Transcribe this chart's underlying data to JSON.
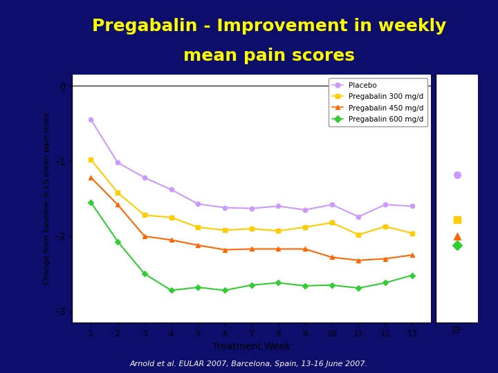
{
  "title_line1": "Pregabalin - Improvement in weekly",
  "title_line2": "mean pain scores",
  "title_color": "#FFFF00",
  "bg_color": "#0D0D6B",
  "plot_bg": "#FFFFFF",
  "ylabel": "Change from baseline in LS mean pain score",
  "xlabel": "Treatment Week",
  "footnote": "Arnold et al. EULAR 2007, Barcelona, Spain, 13-16 June 2007.",
  "weeks": [
    1,
    2,
    3,
    4,
    5,
    6,
    7,
    8,
    9,
    10,
    11,
    12,
    13
  ],
  "placebo": {
    "label": "Placebo",
    "color": "#CC99FF",
    "marker": "o",
    "data": [
      -0.45,
      -1.02,
      -1.22,
      -1.38,
      -1.57,
      -1.62,
      -1.63,
      -1.6,
      -1.65,
      -1.58,
      -1.74,
      -1.58,
      -1.6
    ],
    "ep": -1.18
  },
  "preg300": {
    "label": "Pregabalin 300 mg/d",
    "color": "#FFCC00",
    "marker": "s",
    "data": [
      -0.98,
      -1.42,
      -1.72,
      -1.75,
      -1.88,
      -1.92,
      -1.9,
      -1.93,
      -1.88,
      -1.82,
      -1.98,
      -1.87,
      -1.96
    ],
    "ep": -1.78
  },
  "preg450": {
    "label": "Pregabalin 450 mg/d",
    "color": "#FF6600",
    "marker": "^",
    "data": [
      -1.22,
      -1.58,
      -2.0,
      -2.05,
      -2.12,
      -2.18,
      -2.17,
      -2.17,
      -2.17,
      -2.28,
      -2.32,
      -2.3,
      -2.25
    ],
    "ep": -2.0
  },
  "preg600": {
    "label": "Pregabalin 600 mg/d",
    "color": "#33CC33",
    "marker": "D",
    "data": [
      -1.55,
      -2.07,
      -2.5,
      -2.72,
      -2.68,
      -2.72,
      -2.65,
      -2.62,
      -2.66,
      -2.65,
      -2.69,
      -2.62,
      -2.52
    ],
    "ep": -2.12
  },
  "ylim": [
    -3.15,
    0.15
  ],
  "yticks": [
    0,
    -1,
    -2,
    -3
  ],
  "ytick_labels": [
    "0",
    "–1",
    "–2",
    "–3"
  ],
  "title_fontsize": 18,
  "footnote_fontsize": 8
}
